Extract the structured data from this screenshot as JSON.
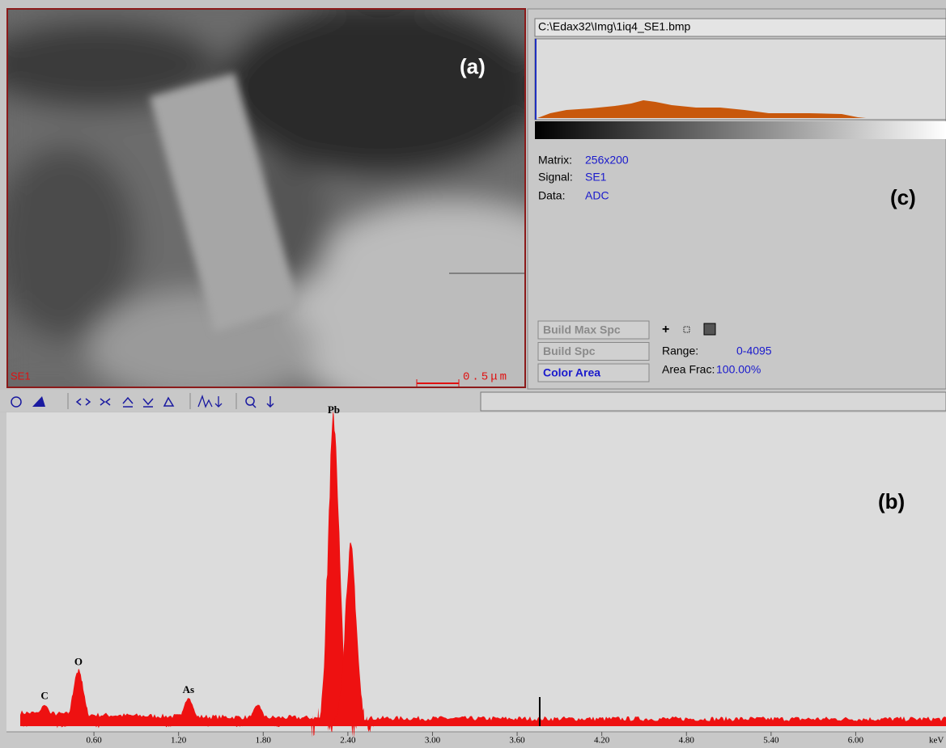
{
  "image_panel": {
    "label": "(a)",
    "signal": "SE1",
    "scale_bar": "0.5μm"
  },
  "info_panel": {
    "file_path": "C:\\Edax32\\Img\\1iq4_SE1.bmp",
    "matrix_label": "Matrix:",
    "matrix_value": "256x200",
    "signal_label": "Signal:",
    "signal_value": "SE1",
    "data_label": "Data:",
    "data_value": "ADC",
    "panel_label": "(c)",
    "buttons": [
      "Build Max Spc",
      "Build Spc",
      "Color Area"
    ],
    "plus": "+",
    "range_label": "Range:",
    "range_value": "0-4095",
    "area_frac_label": "Area Frac:",
    "area_frac_value": "100.00%"
  },
  "spectrum": {
    "panel_label": "(b)",
    "x_label": "keV",
    "xlim": [
      0,
      6.64
    ],
    "xticks": [
      {
        "value": 0.6,
        "label": "0.60"
      },
      {
        "value": 1.2,
        "label": "1.20"
      },
      {
        "value": 1.8,
        "label": "1.80"
      },
      {
        "value": 2.4,
        "label": "2.40"
      },
      {
        "value": 3.0,
        "label": "3.00"
      },
      {
        "value": 3.6,
        "label": "3.60"
      },
      {
        "value": 4.2,
        "label": "4.20"
      },
      {
        "value": 4.8,
        "label": "4.80"
      },
      {
        "value": 5.4,
        "label": "5.40"
      },
      {
        "value": 6.0,
        "label": "6.00"
      }
    ],
    "peaks": [
      {
        "label": "C",
        "x": 0.25,
        "height": 7
      },
      {
        "label": "O",
        "x": 0.49,
        "height": 18
      },
      {
        "label": "As",
        "x": 1.27,
        "height": 9
      },
      {
        "label": null,
        "x": 1.76,
        "height": 7
      },
      {
        "label": "Pb",
        "x": 2.3,
        "height": 100
      },
      {
        "label": null,
        "x": 2.42,
        "height": 58
      }
    ],
    "marker": 3.76
  }
}
